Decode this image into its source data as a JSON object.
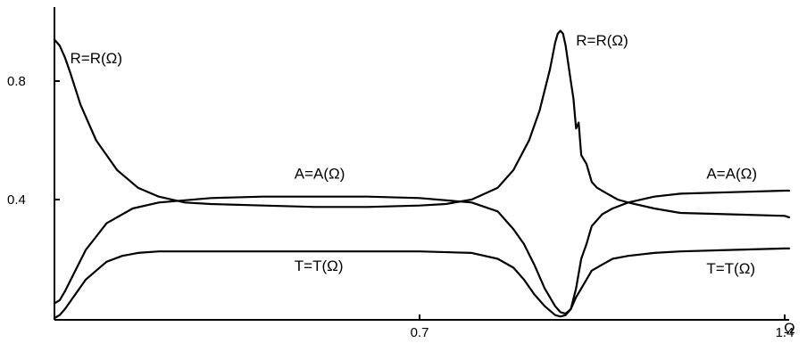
{
  "chart_data": {
    "type": "line",
    "title": "",
    "xlabel": "Ω",
    "ylabel": "",
    "xlim": [
      0,
      1.5
    ],
    "ylim": [
      0,
      1.05
    ],
    "x_ticks": [
      {
        "value": 0.7,
        "label": "0.7"
      },
      {
        "value": 1.4,
        "label": "1.4"
      }
    ],
    "y_ticks": [
      {
        "value": 0.4,
        "label": "0.4"
      },
      {
        "value": 0.8,
        "label": "0.8"
      }
    ],
    "grid": false,
    "series": [
      {
        "name": "R=R(Ω)",
        "x": [
          0.0,
          0.01,
          0.02,
          0.03,
          0.05,
          0.08,
          0.12,
          0.16,
          0.2,
          0.25,
          0.3,
          0.4,
          0.5,
          0.6,
          0.7,
          0.75,
          0.8,
          0.85,
          0.88,
          0.91,
          0.93,
          0.95,
          0.96,
          0.965,
          0.97,
          0.975,
          0.98,
          0.985,
          0.99,
          0.995,
          1.0,
          1.005,
          1.01,
          1.02,
          1.03,
          1.04,
          1.06,
          1.08,
          1.1,
          1.15,
          1.2,
          1.3,
          1.4,
          1.5
        ],
        "y": [
          0.94,
          0.92,
          0.88,
          0.83,
          0.72,
          0.6,
          0.5,
          0.44,
          0.41,
          0.39,
          0.385,
          0.38,
          0.375,
          0.375,
          0.38,
          0.385,
          0.4,
          0.44,
          0.5,
          0.6,
          0.7,
          0.84,
          0.93,
          0.96,
          0.97,
          0.96,
          0.92,
          0.86,
          0.8,
          0.74,
          0.64,
          0.66,
          0.55,
          0.52,
          0.46,
          0.44,
          0.42,
          0.4,
          0.39,
          0.37,
          0.355,
          0.35,
          0.345,
          0.34
        ]
      },
      {
        "name": "A=A(Ω)",
        "x": [
          0.0,
          0.01,
          0.02,
          0.04,
          0.06,
          0.1,
          0.15,
          0.2,
          0.3,
          0.4,
          0.5,
          0.6,
          0.7,
          0.8,
          0.85,
          0.88,
          0.9,
          0.92,
          0.94,
          0.96,
          0.97,
          0.98,
          0.99,
          1.0,
          1.01,
          1.02,
          1.03,
          1.05,
          1.07,
          1.1,
          1.15,
          1.2,
          1.3,
          1.4,
          1.5
        ],
        "y": [
          0.05,
          0.06,
          0.09,
          0.16,
          0.23,
          0.32,
          0.37,
          0.39,
          0.405,
          0.41,
          0.41,
          0.41,
          0.405,
          0.39,
          0.36,
          0.3,
          0.25,
          0.18,
          0.1,
          0.04,
          0.02,
          0.015,
          0.03,
          0.1,
          0.2,
          0.25,
          0.31,
          0.35,
          0.37,
          0.39,
          0.41,
          0.42,
          0.425,
          0.43,
          0.43
        ]
      },
      {
        "name": "T=T(Ω)",
        "x": [
          0.0,
          0.01,
          0.02,
          0.04,
          0.06,
          0.08,
          0.1,
          0.13,
          0.16,
          0.2,
          0.3,
          0.4,
          0.5,
          0.6,
          0.7,
          0.8,
          0.85,
          0.88,
          0.9,
          0.92,
          0.94,
          0.96,
          0.97,
          0.98,
          0.99,
          1.0,
          1.01,
          1.02,
          1.03,
          1.05,
          1.07,
          1.1,
          1.15,
          1.2,
          1.3,
          1.4,
          1.5
        ],
        "y": [
          0.0,
          0.01,
          0.03,
          0.08,
          0.13,
          0.16,
          0.19,
          0.21,
          0.22,
          0.225,
          0.225,
          0.225,
          0.225,
          0.225,
          0.225,
          0.22,
          0.2,
          0.17,
          0.13,
          0.08,
          0.04,
          0.01,
          0.005,
          0.01,
          0.03,
          0.07,
          0.1,
          0.13,
          0.16,
          0.18,
          0.2,
          0.21,
          0.22,
          0.225,
          0.23,
          0.235,
          0.235
        ]
      }
    ],
    "annotations": [
      {
        "text": "R=R(Ω)",
        "x": 0.03,
        "y": 0.86
      },
      {
        "text": "A=A(Ω)",
        "x": 0.46,
        "y": 0.47
      },
      {
        "text": "T=T(Ω)",
        "x": 0.46,
        "y": 0.16
      },
      {
        "text": "R=R(Ω)",
        "x": 1.0,
        "y": 0.92
      },
      {
        "text": "A=A(Ω)",
        "x": 1.25,
        "y": 0.47
      },
      {
        "text": "T=T(Ω)",
        "x": 1.25,
        "y": 0.15
      }
    ]
  }
}
